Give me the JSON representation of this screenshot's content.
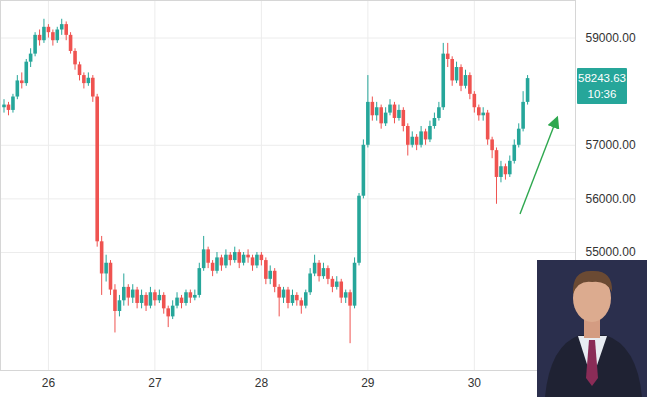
{
  "chart_data": {
    "type": "candlestick",
    "x": [
      25.583,
      25.625,
      25.667,
      25.708,
      25.75,
      25.792,
      25.833,
      25.875,
      25.917,
      25.958,
      26,
      26.042,
      26.083,
      26.125,
      26.167,
      26.208,
      26.25,
      26.292,
      26.333,
      26.375,
      26.417,
      26.458,
      26.5,
      26.542,
      26.583,
      26.625,
      26.667,
      26.708,
      26.75,
      26.792,
      26.833,
      26.875,
      26.917,
      26.958,
      27,
      27.042,
      27.083,
      27.125,
      27.167,
      27.208,
      27.25,
      27.292,
      27.333,
      27.375,
      27.417,
      27.458,
      27.5,
      27.542,
      27.583,
      27.625,
      27.667,
      27.708,
      27.75,
      27.792,
      27.833,
      27.875,
      27.917,
      27.958,
      28,
      28.042,
      28.083,
      28.125,
      28.167,
      28.208,
      28.25,
      28.292,
      28.333,
      28.375,
      28.417,
      28.458,
      28.5,
      28.542,
      28.583,
      28.625,
      28.667,
      28.708,
      28.75,
      28.792,
      28.833,
      28.875,
      28.917,
      28.958,
      29,
      29.042,
      29.083,
      29.125,
      29.167,
      29.208,
      29.25,
      29.292,
      29.333,
      29.375,
      29.417,
      29.458,
      29.5,
      29.542,
      29.583,
      29.625,
      29.667,
      29.708,
      29.75,
      29.792,
      29.833,
      29.875,
      29.917,
      29.958,
      30,
      30.042,
      30.083,
      30.125,
      30.167,
      30.208,
      30.25,
      30.292,
      30.333,
      30.375,
      30.417,
      30.458,
      30.5
    ],
    "open": [
      57700,
      57750,
      57650,
      57900,
      58200,
      58150,
      58550,
      58700,
      59050,
      58950,
      59200,
      59100,
      58950,
      59150,
      59250,
      59050,
      58750,
      58500,
      58300,
      58150,
      58250,
      57900,
      55200,
      54600,
      54800,
      54300,
      53900,
      54100,
      54350,
      54150,
      54300,
      54050,
      54200,
      54000,
      54250,
      54100,
      54200,
      53950,
      53800,
      54000,
      54150,
      54050,
      54250,
      54150,
      54200,
      54700,
      55050,
      54800,
      54650,
      54900,
      54750,
      54950,
      54850,
      55000,
      54800,
      54950,
      54900,
      54750,
      54950,
      54850,
      54500,
      54650,
      54350,
      54150,
      54300,
      54050,
      54200,
      54100,
      54000,
      54250,
      54600,
      54800,
      54550,
      54700,
      54500,
      54350,
      54450,
      54150,
      54250,
      54000,
      54800,
      56050,
      57000,
      57800,
      57550,
      57700,
      57400,
      57600,
      57750,
      57500,
      57650,
      57350,
      57000,
      57150,
      57000,
      57250,
      57100,
      57350,
      57500,
      57700,
      58700,
      58600,
      58200,
      58450,
      58100,
      58300,
      57950,
      57700,
      57550,
      57600,
      57100,
      56900,
      56400,
      56600,
      56450,
      56700,
      57000,
      57300,
      57800
    ],
    "high": [
      57850,
      57800,
      57950,
      58300,
      58350,
      58600,
      58800,
      59100,
      59150,
      59350,
      59250,
      59150,
      59200,
      59350,
      59300,
      59100,
      58800,
      58550,
      58350,
      58350,
      58300,
      57950,
      55300,
      54950,
      54850,
      54400,
      54200,
      54600,
      54400,
      54400,
      54350,
      54300,
      54250,
      54350,
      54300,
      54300,
      54250,
      54000,
      54100,
      54250,
      54200,
      54300,
      54300,
      54300,
      54800,
      55300,
      55100,
      54850,
      55000,
      54950,
      55050,
      55000,
      55100,
      55050,
      55000,
      55050,
      54950,
      55000,
      55000,
      54900,
      54750,
      54700,
      54400,
      54350,
      54350,
      54300,
      54250,
      54150,
      54300,
      54700,
      54950,
      54850,
      54800,
      54750,
      54550,
      54550,
      54500,
      54300,
      54300,
      54900,
      56100,
      57100,
      58300,
      57900,
      57800,
      57750,
      57700,
      57850,
      57800,
      57750,
      57700,
      57400,
      57250,
      57200,
      57350,
      57300,
      57450,
      57600,
      57800,
      58900,
      58900,
      58650,
      58550,
      58500,
      58400,
      58350,
      58000,
      57750,
      57700,
      57650,
      57150,
      56950,
      56700,
      56650,
      56800,
      57100,
      57400,
      58000,
      58300
    ],
    "low": [
      57600,
      57550,
      57600,
      57850,
      58050,
      58100,
      58450,
      58650,
      58850,
      58900,
      59000,
      58850,
      58900,
      59050,
      58950,
      58700,
      58400,
      58200,
      58050,
      58100,
      57800,
      55100,
      54200,
      54450,
      54200,
      53500,
      53800,
      54000,
      54000,
      54050,
      53950,
      53950,
      53900,
      53950,
      54000,
      54050,
      53850,
      53600,
      53750,
      53950,
      53950,
      54000,
      54050,
      54100,
      54150,
      54650,
      54700,
      54550,
      54600,
      54650,
      54700,
      54750,
      54800,
      54700,
      54750,
      54800,
      54650,
      54700,
      54750,
      54400,
      54400,
      54250,
      53800,
      54050,
      53950,
      54000,
      54000,
      53850,
      53950,
      54200,
      54550,
      54450,
      54500,
      54400,
      54250,
      54300,
      54050,
      54050,
      53300,
      53950,
      54750,
      56000,
      56950,
      57450,
      57450,
      57300,
      57350,
      57550,
      57400,
      57450,
      57250,
      56800,
      56950,
      56900,
      56950,
      57000,
      57050,
      57300,
      57450,
      57650,
      58450,
      58100,
      58150,
      58000,
      58050,
      57850,
      57600,
      57450,
      57450,
      57000,
      56750,
      55900,
      56300,
      56350,
      56400,
      56650,
      56950,
      57250,
      57750
    ],
    "close": [
      57750,
      57650,
      57900,
      58200,
      58150,
      58550,
      58700,
      59050,
      58950,
      59200,
      59100,
      58950,
      59150,
      59250,
      59050,
      58750,
      58500,
      58300,
      58150,
      58250,
      57900,
      55200,
      54600,
      54800,
      54300,
      53900,
      54100,
      54350,
      54150,
      54300,
      54050,
      54200,
      54000,
      54250,
      54100,
      54200,
      53950,
      53800,
      54000,
      54150,
      54050,
      54250,
      54150,
      54200,
      54700,
      55050,
      54800,
      54650,
      54900,
      54750,
      54950,
      54850,
      55000,
      54800,
      54950,
      54900,
      54750,
      54950,
      54850,
      54500,
      54650,
      54350,
      54150,
      54300,
      54050,
      54200,
      54100,
      54000,
      54250,
      54600,
      54800,
      54550,
      54700,
      54500,
      54350,
      54450,
      54150,
      54250,
      54000,
      54800,
      56050,
      57000,
      57800,
      57550,
      57700,
      57400,
      57600,
      57750,
      57500,
      57650,
      57350,
      57000,
      57150,
      57000,
      57250,
      57100,
      57350,
      57500,
      57700,
      58700,
      58600,
      58200,
      58450,
      58100,
      58300,
      57950,
      57700,
      57550,
      57600,
      57100,
      56900,
      56400,
      56600,
      56450,
      56700,
      57000,
      57300,
      57800,
      58243.63
    ],
    "xlim": [
      25.55,
      30.95
    ],
    "xticks": [
      26,
      27,
      28,
      29,
      30
    ],
    "ylim": [
      52800,
      59700
    ],
    "yticks": [
      {
        "value": 55000,
        "label": "55000.00"
      },
      {
        "value": 56000,
        "label": "56000.00"
      },
      {
        "value": 57000,
        "label": "57000.00"
      },
      {
        "value": 59000,
        "label": "59000.00"
      }
    ],
    "grid": true,
    "price_label": {
      "value": 58243.63,
      "label": "58243.63",
      "timer": "10:36"
    }
  }
}
